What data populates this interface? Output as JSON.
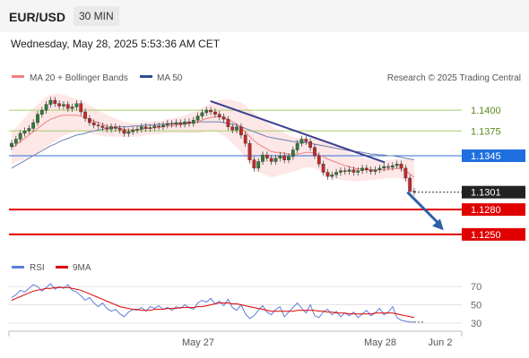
{
  "header": {
    "pair": "EUR/USD",
    "timeframe": "30 MIN"
  },
  "timestamp": "Wednesday, May 28, 2025 5:53:36 AM CET",
  "legend": {
    "ma20": {
      "label": "MA 20 + Bollinger Bands",
      "color": "#f08080"
    },
    "ma50": {
      "label": "MA 50",
      "color": "#2f4f8f"
    },
    "credit": "Research © 2025 Trading Central"
  },
  "rsi_legend": {
    "rsi": {
      "label": "RSI",
      "color": "#5b7fd6"
    },
    "ma9": {
      "label": "9MA",
      "color": "#e00000"
    }
  },
  "chart_data": [
    {
      "type": "candlestick",
      "ylim": [
        1.1225,
        1.1425
      ],
      "x_labels": [
        "May 27",
        "May 28",
        "Jun 2"
      ],
      "levels": [
        {
          "value": 1.14,
          "label": "1.1400",
          "kind": "resistance"
        },
        {
          "value": 1.1375,
          "label": "1.1375",
          "kind": "resistance"
        },
        {
          "value": 1.1345,
          "label": "1.1345",
          "kind": "pivot"
        },
        {
          "value": 1.1301,
          "label": "1.1301",
          "kind": "last"
        },
        {
          "value": 1.128,
          "label": "1.1280",
          "kind": "support"
        },
        {
          "value": 1.125,
          "label": "1.1250",
          "kind": "support"
        }
      ],
      "trendline": [
        [
          0.445,
          1.1411
        ],
        [
          0.83,
          1.1337
        ]
      ],
      "forecast_arrow": [
        [
          0.88,
          1.1301
        ],
        [
          0.96,
          1.1255
        ]
      ],
      "closes": [
        1.136,
        1.1365,
        1.1372,
        1.1375,
        1.1378,
        1.1385,
        1.1395,
        1.14,
        1.1407,
        1.1412,
        1.1408,
        1.1405,
        1.1407,
        1.1402,
        1.1404,
        1.1408,
        1.1398,
        1.139,
        1.1385,
        1.1382,
        1.1381,
        1.1379,
        1.1377,
        1.138,
        1.1378,
        1.1376,
        1.1372,
        1.1374,
        1.1376,
        1.1377,
        1.138,
        1.1378,
        1.1379,
        1.1381,
        1.138,
        1.1382,
        1.1384,
        1.1383,
        1.1385,
        1.1383,
        1.1386,
        1.1384,
        1.1388,
        1.1393,
        1.1397,
        1.14,
        1.1398,
        1.1395,
        1.1392,
        1.1389,
        1.138,
        1.1376,
        1.138,
        1.137,
        1.136,
        1.134,
        1.133,
        1.1338,
        1.1346,
        1.1342,
        1.1338,
        1.1342,
        1.1345,
        1.134,
        1.1344,
        1.1352,
        1.136,
        1.1365,
        1.1362,
        1.1355,
        1.1345,
        1.1335,
        1.1325,
        1.132,
        1.1322,
        1.1325,
        1.1327,
        1.1326,
        1.1328,
        1.1325,
        1.1327,
        1.133,
        1.1328,
        1.1326,
        1.1328,
        1.133,
        1.1332,
        1.1331,
        1.1333,
        1.1335,
        1.133,
        1.1318,
        1.1302,
        1.1301
      ],
      "ma20": [
        1.1355,
        1.1358,
        1.1362,
        1.1366,
        1.137,
        1.1374,
        1.1378,
        1.1382,
        1.1386,
        1.1389,
        1.1391,
        1.1393,
        1.1394,
        1.1394,
        1.1394,
        1.1394,
        1.1393,
        1.1391,
        1.1389,
        1.1387,
        1.1385,
        1.1383,
        1.1381,
        1.138,
        1.1379,
        1.1378,
        1.1377,
        1.1376,
        1.1376,
        1.1376,
        1.1377,
        1.1378,
        1.1378,
        1.1379,
        1.1379,
        1.138,
        1.1381,
        1.1381,
        1.1382,
        1.1382,
        1.1383,
        1.1384,
        1.1385,
        1.1386,
        1.1388,
        1.139,
        1.1391,
        1.1392,
        1.1392,
        1.1391,
        1.1389,
        1.1386,
        1.1383,
        1.1379,
        1.1374,
        1.1368,
        1.1363,
        1.1359,
        1.1356,
        1.1353,
        1.135,
        1.1349,
        1.1349,
        1.1348,
        1.1347,
        1.1347,
        1.1347,
        1.1348,
        1.1349,
        1.1349,
        1.1348,
        1.1346,
        1.1344,
        1.1341,
        1.1339,
        1.1337,
        1.1335,
        1.1333,
        1.1332,
        1.133,
        1.1329,
        1.1329,
        1.1328,
        1.1328,
        1.1328,
        1.1328,
        1.1328,
        1.1329,
        1.1329,
        1.133,
        1.1329,
        1.1327,
        1.1323,
        1.1319
      ],
      "ma50": [
        1.133,
        1.1333,
        1.1336,
        1.1339,
        1.1342,
        1.1345,
        1.1348,
        1.1351,
        1.1354,
        1.1357,
        1.1359,
        1.1362,
        1.1364,
        1.1366,
        1.1368,
        1.137,
        1.1371,
        1.1372,
        1.1374,
        1.1375,
        1.1376,
        1.1377,
        1.1378,
        1.1379,
        1.1379,
        1.138,
        1.138,
        1.138,
        1.1381,
        1.1381,
        1.1381,
        1.1382,
        1.1382,
        1.1382,
        1.1383,
        1.1383,
        1.1383,
        1.1384,
        1.1384,
        1.1384,
        1.1385,
        1.1385,
        1.1385,
        1.1386,
        1.1386,
        1.1386,
        1.1386,
        1.1386,
        1.1386,
        1.1385,
        1.1384,
        1.1383,
        1.1382,
        1.138,
        1.1378,
        1.1376,
        1.1374,
        1.1372,
        1.137,
        1.1368,
        1.1367,
        1.1366,
        1.1365,
        1.1364,
        1.1363,
        1.1362,
        1.1362,
        1.1361,
        1.1361,
        1.136,
        1.1359,
        1.1358,
        1.1357,
        1.1356,
        1.1355,
        1.1354,
        1.1353,
        1.1352,
        1.1351,
        1.135,
        1.135,
        1.1349,
        1.1348,
        1.1347,
        1.1347,
        1.1346,
        1.1346,
        1.1345,
        1.1345,
        1.1344,
        1.1343,
        1.1342,
        1.1341,
        1.134
      ],
      "band_width": [
        0.002,
        0.0021,
        0.0023,
        0.0025,
        0.0027,
        0.0028,
        0.0029,
        0.003,
        0.003,
        0.003,
        0.0029,
        0.0027,
        0.0025,
        0.0023,
        0.0021,
        0.002,
        0.0019,
        0.0018,
        0.0017,
        0.0016,
        0.0015,
        0.0014,
        0.0013,
        0.0012,
        0.0011,
        0.001,
        0.0009,
        0.0009,
        0.0008,
        0.0008,
        0.0008,
        0.0008,
        0.0008,
        0.0008,
        0.0008,
        0.0008,
        0.0009,
        0.0009,
        0.0009,
        0.001,
        0.0011,
        0.0012,
        0.0013,
        0.0014,
        0.0015,
        0.0016,
        0.0017,
        0.0018,
        0.002,
        0.0022,
        0.0024,
        0.0026,
        0.0028,
        0.003,
        0.0032,
        0.0033,
        0.0034,
        0.0034,
        0.0033,
        0.0032,
        0.0031,
        0.0029,
        0.0027,
        0.0025,
        0.0023,
        0.0021,
        0.002,
        0.0019,
        0.0018,
        0.0018,
        0.0018,
        0.0019,
        0.002,
        0.0021,
        0.0021,
        0.002,
        0.0019,
        0.0018,
        0.0017,
        0.0016,
        0.0015,
        0.0014,
        0.0013,
        0.0012,
        0.0012,
        0.0011,
        0.0011,
        0.0011,
        0.0011,
        0.0011,
        0.0012,
        0.0014,
        0.0017,
        0.002
      ]
    },
    {
      "type": "line",
      "ylim": [
        25,
        80
      ],
      "ticks": [
        {
          "value": 70,
          "label": "70"
        },
        {
          "value": 50,
          "label": "50"
        },
        {
          "value": 30,
          "label": "30"
        }
      ],
      "rsi": [
        58,
        61,
        66,
        64,
        68,
        72,
        70,
        65,
        69,
        73,
        67,
        70,
        68,
        72,
        66,
        64,
        60,
        55,
        58,
        52,
        48,
        52,
        46,
        43,
        45,
        40,
        37,
        42,
        45,
        44,
        47,
        43,
        48,
        46,
        49,
        45,
        47,
        44,
        48,
        46,
        50,
        47,
        45,
        52,
        55,
        53,
        57,
        51,
        54,
        49,
        56,
        47,
        44,
        50,
        40,
        35,
        38,
        44,
        49,
        42,
        39,
        45,
        48,
        37,
        42,
        47,
        52,
        46,
        41,
        50,
        38,
        36,
        42,
        45,
        39,
        43,
        37,
        41,
        38,
        42,
        36,
        40,
        44,
        38,
        41,
        46,
        39,
        42,
        48,
        36,
        33,
        32,
        31,
        31
      ],
      "ma9": [
        55,
        57,
        59,
        61,
        63,
        65,
        66,
        67,
        68,
        68,
        69,
        69,
        69,
        69,
        68,
        67,
        66,
        64,
        62,
        60,
        58,
        56,
        54,
        52,
        50,
        48,
        47,
        46,
        45,
        45,
        44,
        44,
        44,
        45,
        45,
        45,
        46,
        46,
        46,
        47,
        47,
        47,
        47,
        48,
        48,
        49,
        50,
        51,
        52,
        52,
        52,
        51,
        51,
        50,
        49,
        48,
        47,
        46,
        45,
        44,
        43,
        43,
        43,
        43,
        43,
        43,
        44,
        44,
        44,
        44,
        44,
        43,
        43,
        42,
        42,
        41,
        41,
        41,
        40,
        40,
        40,
        40,
        40,
        40,
        41,
        41,
        41,
        41,
        41,
        40,
        39,
        38,
        37,
        36
      ]
    }
  ]
}
